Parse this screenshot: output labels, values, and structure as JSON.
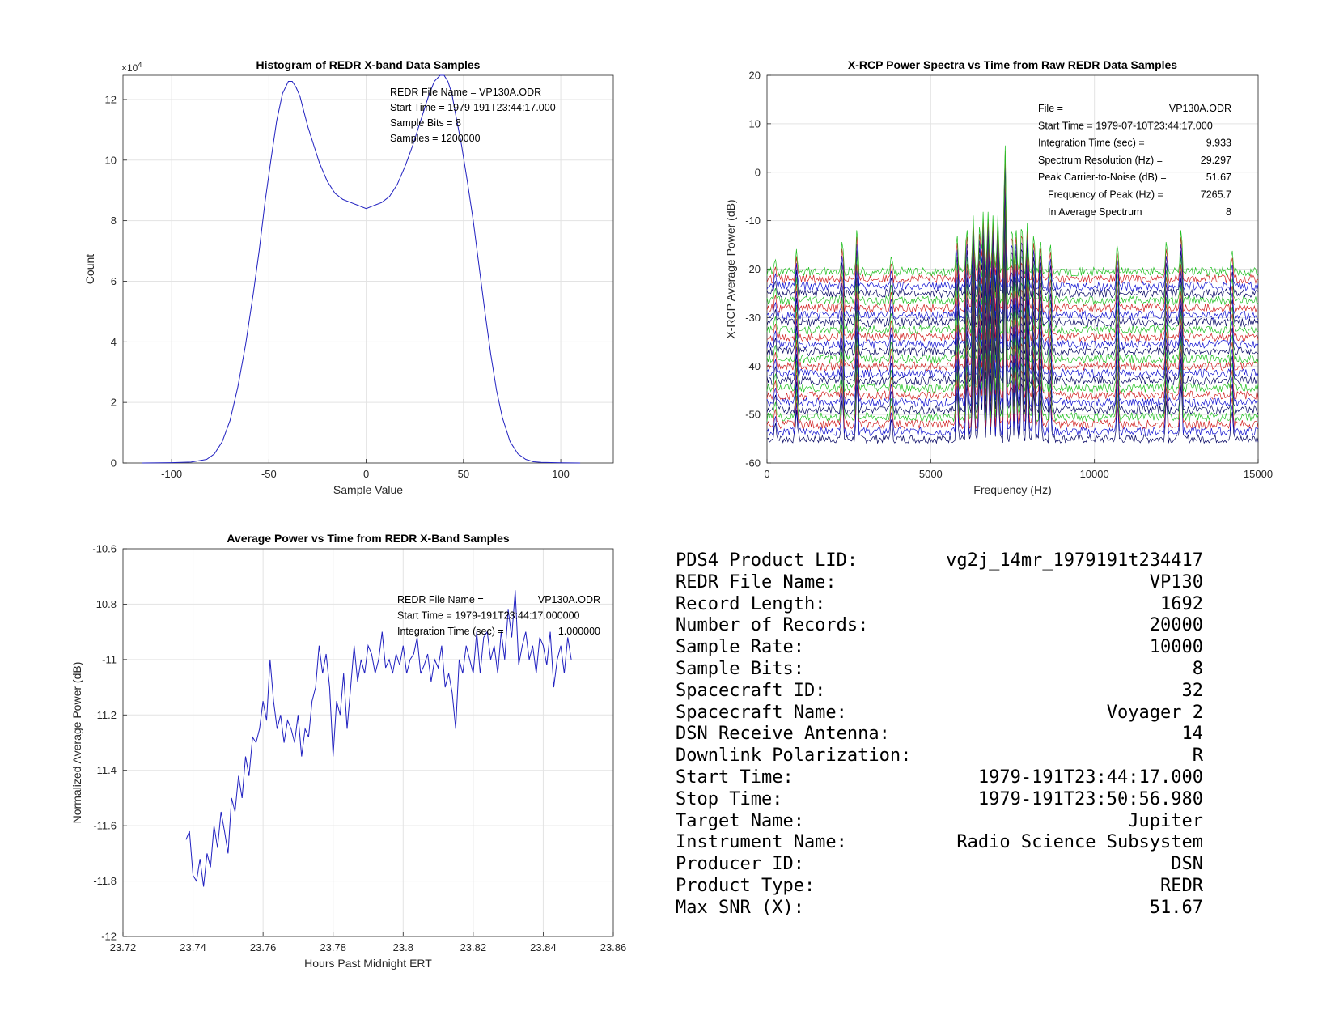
{
  "chart_data": [
    {
      "type": "line",
      "title": "Histogram of REDR X-band Data Samples",
      "xlabel": "Sample Value",
      "ylabel": "Count",
      "exponent_label": "×10",
      "exponent_power": "4",
      "xlim": [
        -125,
        127
      ],
      "ylim": [
        0,
        12.8
      ],
      "y_scale_multiplier": 10000,
      "grid": true,
      "xticks": [
        -100,
        -50,
        0,
        50,
        100
      ],
      "yticks": [
        0,
        2,
        4,
        6,
        8,
        10,
        12
      ],
      "color": "#2020c0",
      "annotations": [
        "REDR File Name = VP130A.ODR",
        "Start Time = 1979-191T23:44:17.000",
        "Sample Bits = 8",
        "Samples = 1200000"
      ],
      "series": [
        {
          "x": [
            -115,
            -100,
            -90,
            -82,
            -78,
            -74,
            -70,
            -66,
            -62,
            -58,
            -55,
            -52,
            -49,
            -46,
            -43,
            -40,
            -38,
            -36,
            -34,
            -32,
            -30,
            -27,
            -24,
            -20,
            -16,
            -12,
            -8,
            -4,
            0,
            4,
            8,
            12,
            16,
            20,
            24,
            28,
            32,
            35,
            38,
            40,
            42,
            44,
            46,
            49,
            52,
            55,
            58,
            61,
            64,
            67,
            70,
            74,
            78,
            82,
            86,
            90,
            100,
            110
          ],
          "y": [
            0,
            0.01,
            0.03,
            0.12,
            0.3,
            0.7,
            1.4,
            2.5,
            3.9,
            5.6,
            7.0,
            8.6,
            10.0,
            11.3,
            12.2,
            12.6,
            12.6,
            12.4,
            12.1,
            11.6,
            11.1,
            10.5,
            9.9,
            9.3,
            8.9,
            8.7,
            8.6,
            8.5,
            8.4,
            8.5,
            8.6,
            8.8,
            9.2,
            9.8,
            10.5,
            11.3,
            12.1,
            12.6,
            12.8,
            12.8,
            12.6,
            12.2,
            11.5,
            10.5,
            9.3,
            8.0,
            6.5,
            5.0,
            3.6,
            2.4,
            1.5,
            0.7,
            0.3,
            0.12,
            0.04,
            0.02,
            0.005,
            0
          ]
        }
      ]
    },
    {
      "type": "line",
      "title": "X-RCP Power Spectra vs Time from Raw REDR Data Samples",
      "xlabel": "Frequency (Hz)",
      "ylabel": "X-RCP Average Power (dB)",
      "xlim": [
        0,
        15000
      ],
      "ylim": [
        -60,
        20
      ],
      "grid": true,
      "xticks": [
        0,
        5000,
        10000,
        15000
      ],
      "yticks": [
        -60,
        -50,
        -40,
        -30,
        -20,
        -10,
        0,
        10,
        20
      ],
      "series_colors": [
        "#000060",
        "#1010d0",
        "#d02020",
        "#20c020"
      ],
      "n_spectra": 24,
      "baseline_bottom_db": -55,
      "baseline_step_db": 1.5,
      "peaks_hz": [
        250,
        900,
        2300,
        2750,
        3800,
        5800,
        6100,
        6300,
        6500,
        6600,
        6750,
        6900,
        7050,
        7265.7,
        7480,
        7600,
        7780,
        7950,
        8150,
        8350,
        8650,
        10700,
        12200,
        12650,
        14200
      ],
      "peak_heights_db": [
        4,
        6,
        10,
        14,
        5,
        12,
        14,
        15,
        15,
        16,
        16,
        15,
        15,
        40,
        15,
        14,
        16,
        13,
        12,
        10,
        9,
        9,
        10,
        14,
        7
      ],
      "annotations": [
        {
          "label": "File =",
          "value": "VP130A.ODR"
        },
        {
          "label": "Start Time = 1979-07-10T23:44:17.000",
          "value": ""
        },
        {
          "label": "Integration Time (sec) =",
          "value": "9.933"
        },
        {
          "label": "Spectrum Resolution (Hz) =",
          "value": "29.297"
        },
        {
          "label": "Peak Carrier-to-Noise (dB) =",
          "value": "51.67"
        },
        {
          "label": "Frequency of Peak (Hz) =",
          "value": "7265.7"
        },
        {
          "label": "In Average Spectrum",
          "value": "8"
        }
      ]
    },
    {
      "type": "line",
      "title": "Average Power vs Time from REDR X-Band Samples",
      "xlabel": "Hours Past Midnight ERT",
      "ylabel": "Normalized Average Power (dB)",
      "xlim": [
        23.72,
        23.86
      ],
      "ylim": [
        -12,
        -10.6
      ],
      "grid": true,
      "xticks": [
        23.72,
        23.74,
        23.76,
        23.78,
        23.8,
        23.82,
        23.84,
        23.86
      ],
      "yticks": [
        -12,
        -11.8,
        -11.6,
        -11.4,
        -11.2,
        -11,
        -10.8,
        -10.6
      ],
      "color": "#2020c0",
      "annotations": [
        {
          "label": "REDR File Name =",
          "value": "VP130A.ODR"
        },
        {
          "label": "Start Time = 1979-191T23:44:17.000000",
          "value": ""
        },
        {
          "label": "Integration Time (sec) =",
          "value": "1.000000"
        }
      ],
      "series": [
        {
          "x": [
            23.738,
            23.739,
            23.74,
            23.741,
            23.742,
            23.743,
            23.744,
            23.745,
            23.746,
            23.747,
            23.748,
            23.749,
            23.75,
            23.751,
            23.752,
            23.753,
            23.754,
            23.755,
            23.756,
            23.757,
            23.758,
            23.759,
            23.76,
            23.761,
            23.762,
            23.763,
            23.764,
            23.765,
            23.766,
            23.767,
            23.768,
            23.769,
            23.77,
            23.771,
            23.772,
            23.773,
            23.774,
            23.775,
            23.776,
            23.777,
            23.778,
            23.779,
            23.78,
            23.781,
            23.782,
            23.783,
            23.784,
            23.785,
            23.786,
            23.787,
            23.788,
            23.789,
            23.79,
            23.791,
            23.792,
            23.793,
            23.794,
            23.795,
            23.796,
            23.797,
            23.798,
            23.799,
            23.8,
            23.801,
            23.802,
            23.803,
            23.804,
            23.805,
            23.806,
            23.807,
            23.808,
            23.809,
            23.81,
            23.811,
            23.812,
            23.813,
            23.814,
            23.815,
            23.816,
            23.817,
            23.818,
            23.819,
            23.82,
            23.821,
            23.822,
            23.823,
            23.824,
            23.825,
            23.826,
            23.827,
            23.828,
            23.829,
            23.83,
            23.831,
            23.832,
            23.833,
            23.834,
            23.835,
            23.836,
            23.837,
            23.838,
            23.839,
            23.84,
            23.841,
            23.842,
            23.843,
            23.844,
            23.845,
            23.846,
            23.847,
            23.848
          ],
          "y": [
            -11.65,
            -11.62,
            -11.78,
            -11.8,
            -11.72,
            -11.82,
            -11.7,
            -11.75,
            -11.6,
            -11.68,
            -11.55,
            -11.62,
            -11.7,
            -11.5,
            -11.55,
            -11.42,
            -11.5,
            -11.35,
            -11.42,
            -11.28,
            -11.3,
            -11.25,
            -11.15,
            -11.22,
            -11.0,
            -11.15,
            -11.25,
            -11.2,
            -11.3,
            -11.22,
            -11.25,
            -11.3,
            -11.2,
            -11.35,
            -11.25,
            -11.28,
            -11.15,
            -11.1,
            -10.95,
            -11.05,
            -10.98,
            -11.1,
            -11.35,
            -11.15,
            -11.2,
            -11.05,
            -11.25,
            -11.1,
            -10.95,
            -11.08,
            -11.0,
            -11.05,
            -10.95,
            -10.98,
            -11.05,
            -11.0,
            -10.9,
            -11.03,
            -11.0,
            -11.05,
            -10.98,
            -11.02,
            -10.95,
            -11.05,
            -11.0,
            -10.98,
            -10.92,
            -11.05,
            -11.02,
            -10.98,
            -11.08,
            -11.0,
            -11.03,
            -10.95,
            -11.1,
            -11.05,
            -11.12,
            -11.25,
            -11.0,
            -11.05,
            -10.95,
            -11.0,
            -11.05,
            -10.9,
            -11.05,
            -10.92,
            -10.9,
            -11.0,
            -10.95,
            -11.05,
            -10.9,
            -11.0,
            -10.82,
            -10.92,
            -10.75,
            -11.02,
            -10.95,
            -10.9,
            -11.0,
            -10.95,
            -11.05,
            -10.92,
            -10.95,
            -11.02,
            -10.9,
            -11.1,
            -11.0,
            -10.95,
            -11.05,
            -10.92,
            -11.0
          ]
        }
      ]
    }
  ],
  "info_table": [
    {
      "label": "PDS4 Product LID:",
      "value": "vg2j_14mr_1979191t234417"
    },
    {
      "label": "REDR File Name:",
      "value": "VP130"
    },
    {
      "label": "Record Length:",
      "value": "1692"
    },
    {
      "label": "Number of Records:",
      "value": "20000"
    },
    {
      "label": "Sample Rate:",
      "value": "10000"
    },
    {
      "label": "Sample Bits:",
      "value": "8"
    },
    {
      "label": "Spacecraft ID:",
      "value": "32"
    },
    {
      "label": "Spacecraft Name:",
      "value": "Voyager 2"
    },
    {
      "label": "DSN Receive Antenna:",
      "value": "14"
    },
    {
      "label": "Downlink Polarization:",
      "value": "R"
    },
    {
      "label": "Start Time:",
      "value": "1979-191T23:44:17.000"
    },
    {
      "label": "Stop Time:",
      "value": "1979-191T23:50:56.980"
    },
    {
      "label": "Target Name:",
      "value": "Jupiter"
    },
    {
      "label": "Instrument Name:",
      "value": "Radio Science Subsystem"
    },
    {
      "label": "Producer ID:",
      "value": "DSN"
    },
    {
      "label": "Product Type:",
      "value": "REDR"
    },
    {
      "label": "Max SNR (X):",
      "value": "51.67"
    }
  ]
}
